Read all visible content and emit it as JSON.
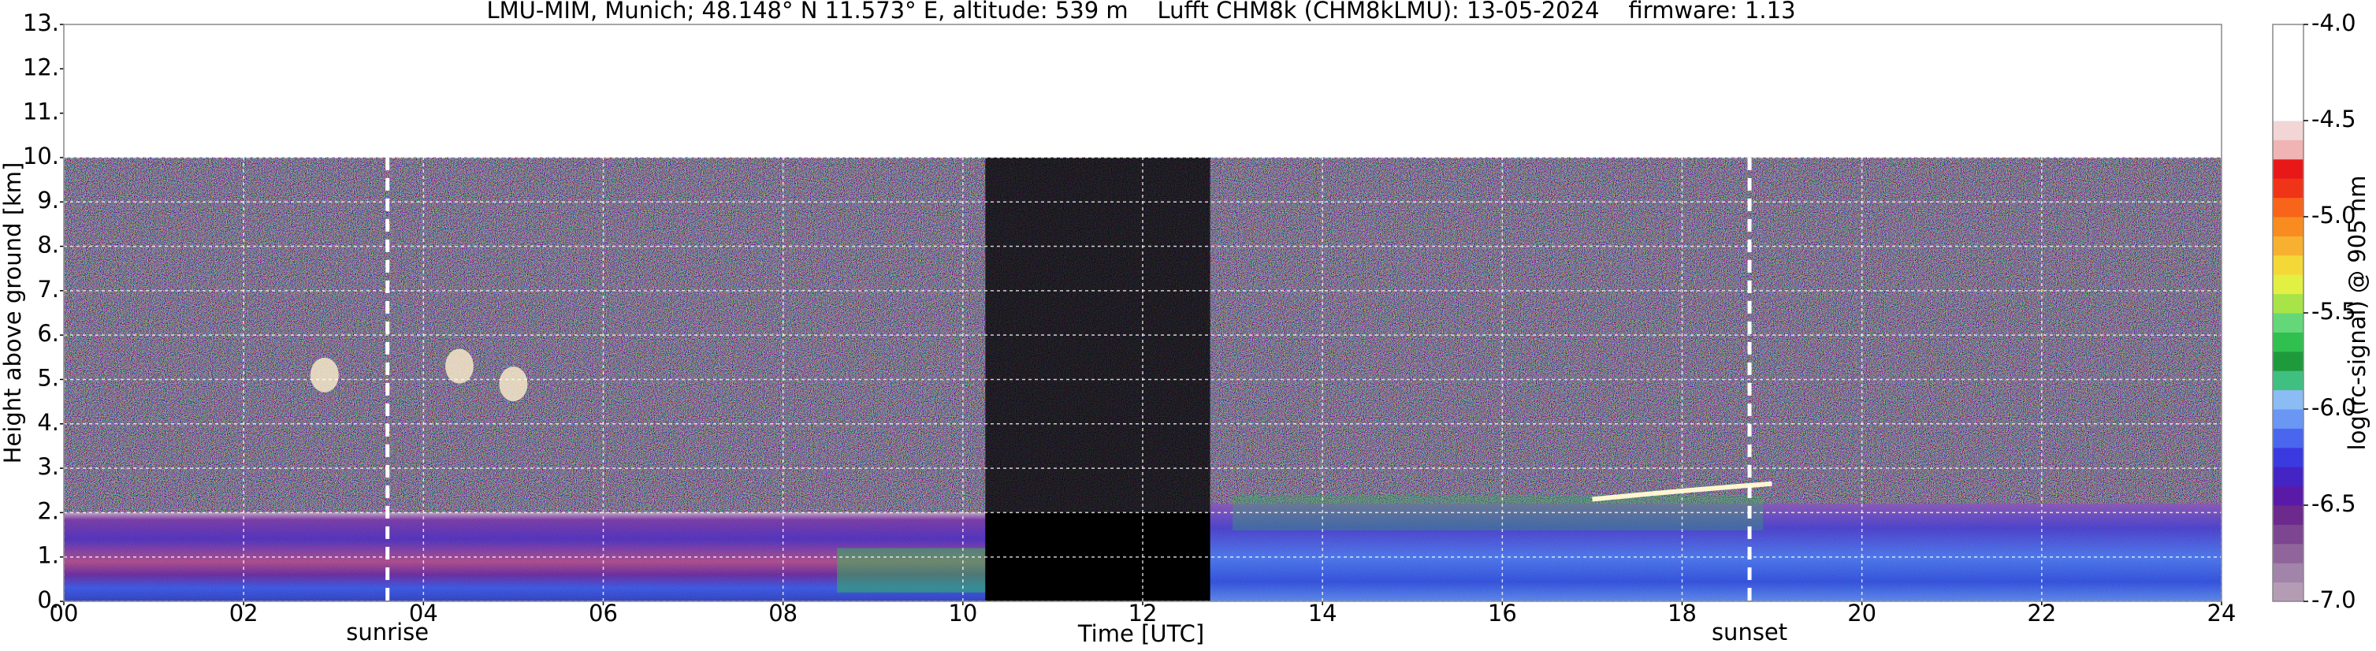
{
  "chart_data": {
    "type": "heatmap",
    "title": "LMU-MIM, Munich; 48.148° N 11.573° E, altitude: 539 m    Lufft CHM8k (CHM8kLMU): 13-05-2024    firmware: 1.13",
    "xlabel": "Time [UTC]",
    "ylabel": "Height above ground [km]",
    "xlim": [
      0,
      24
    ],
    "xticks": [
      {
        "value": 0,
        "label": "00"
      },
      {
        "value": 2,
        "label": "02"
      },
      {
        "value": 4,
        "label": "04"
      },
      {
        "value": 6,
        "label": "06"
      },
      {
        "value": 8,
        "label": "08"
      },
      10,
      12,
      14,
      16,
      18,
      20,
      22,
      24
    ],
    "ylim": [
      0,
      13
    ],
    "yticks": [
      {
        "value": 0,
        "label": "0."
      },
      {
        "value": 1,
        "label": "1."
      },
      {
        "value": 2,
        "label": "2."
      },
      {
        "value": 3,
        "label": "3."
      },
      {
        "value": 4,
        "label": "4."
      },
      {
        "value": 5,
        "label": "5."
      },
      {
        "value": 6,
        "label": "6."
      },
      {
        "value": 7,
        "label": "7."
      },
      {
        "value": 8,
        "label": "8."
      },
      {
        "value": 9,
        "label": "9."
      },
      {
        "value": 10,
        "label": "10."
      },
      {
        "value": 11,
        "label": "11."
      },
      {
        "value": 12,
        "label": "12."
      },
      {
        "value": 13,
        "label": "13."
      }
    ],
    "grid": true,
    "annotations": [
      {
        "text": "sunrise",
        "x": 3.6
      },
      {
        "text": "sunset",
        "x": 18.75
      }
    ],
    "colorbar": {
      "label": "log(rc-signal) @ 905 nm",
      "lim": [
        -7,
        -4
      ],
      "ticks": [
        {
          "value": -4,
          "label": "-4.0"
        },
        -4.5,
        {
          "value": -5,
          "label": "-5.0"
        },
        -5.5,
        {
          "value": -6,
          "label": "-6.0"
        },
        -6.5,
        {
          "value": -7,
          "label": "-7.0"
        }
      ],
      "colors": [
        "#b59cb5",
        "#a283aa",
        "#8f659c",
        "#7d4690",
        "#6b2a8c",
        "#5a1aa8",
        "#4424c4",
        "#3a3ae0",
        "#4a66ee",
        "#6a96f4",
        "#8cbcf4",
        "#40c080",
        "#1e9a3c",
        "#30c050",
        "#64d878",
        "#a8e448",
        "#e2f044",
        "#f4d838",
        "#f8b030",
        "#f88c20",
        "#f8641a",
        "#f03418",
        "#e81818",
        "#f0b4b4",
        "#f2d6d6",
        "#ffffff",
        "#ffffff",
        "#ffffff",
        "#ffffff",
        "#ffffff"
      ]
    }
  }
}
